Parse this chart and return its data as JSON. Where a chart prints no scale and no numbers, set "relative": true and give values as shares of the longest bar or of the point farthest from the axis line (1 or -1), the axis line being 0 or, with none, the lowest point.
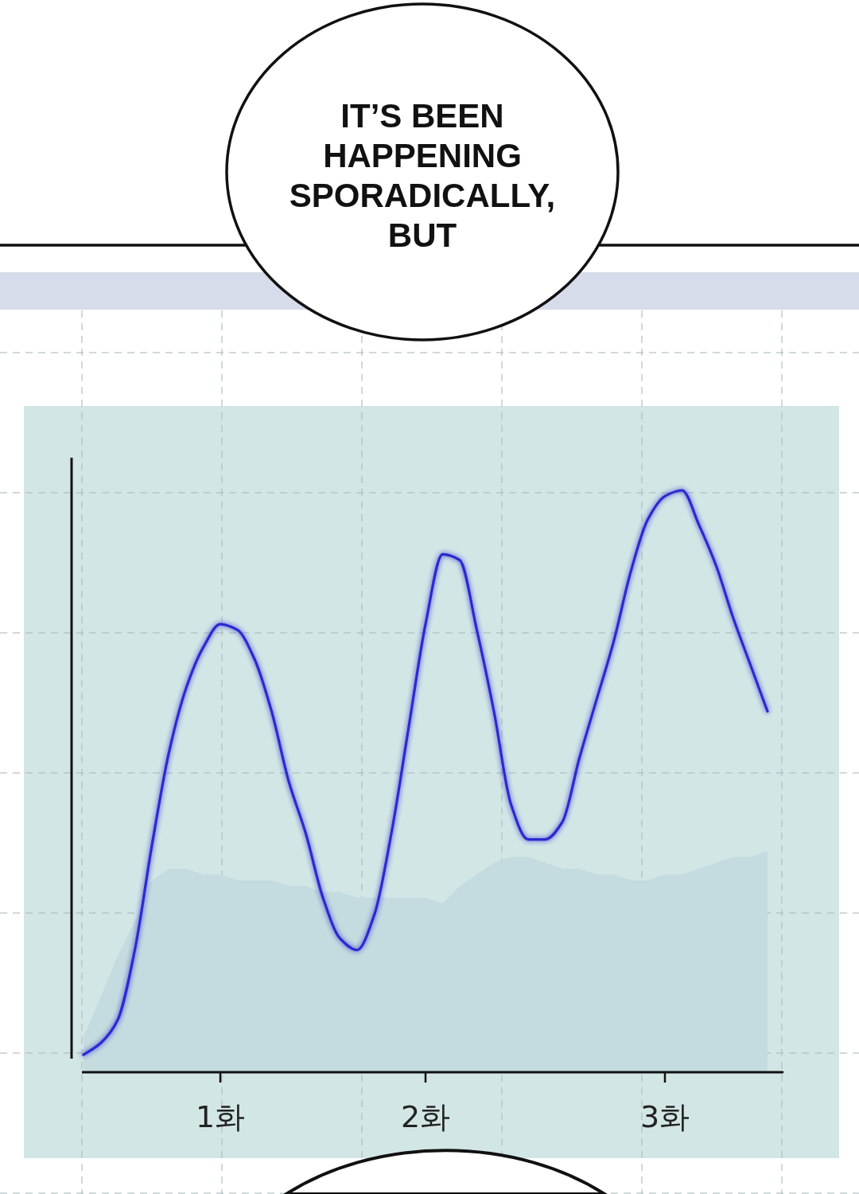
{
  "chart_data": {
    "type": "line",
    "relative": true,
    "tick_labels": "x",
    "grid": true,
    "annotations": [
      "IT’S BEEN HAPPENING SPORADICALLY, BUT"
    ],
    "categories": [
      null,
      null,
      null,
      null,
      null,
      null,
      null,
      null,
      "1화",
      null,
      null,
      null,
      null,
      null,
      null,
      null,
      null,
      null,
      null,
      null,
      "2화",
      null,
      null,
      null,
      null,
      null,
      null,
      null,
      null,
      null,
      null,
      null,
      null,
      null,
      "3화",
      null,
      null,
      null,
      null,
      null,
      null,
      null
    ],
    "series": [
      {
        "type": "area",
        "color": "#c4dcdf",
        "values": [
          0.06,
          0.13,
          0.2,
          0.26,
          0.33,
          0.35,
          0.35,
          0.34,
          0.34,
          0.33,
          0.33,
          0.33,
          0.32,
          0.32,
          0.31,
          0.31,
          0.3,
          0.3,
          0.3,
          0.3,
          0.3,
          0.29,
          0.32,
          0.34,
          0.36,
          0.37,
          0.37,
          0.36,
          0.35,
          0.35,
          0.34,
          0.34,
          0.33,
          0.33,
          0.34,
          0.34,
          0.35,
          0.36,
          0.37,
          0.37,
          0.38,
          null
        ]
      },
      {
        "color": "#2b2bd1",
        "values": [
          0.03,
          0.05,
          0.09,
          0.21,
          0.39,
          0.55,
          0.66,
          0.73,
          0.77,
          0.76,
          0.71,
          0.62,
          0.5,
          0.41,
          0.3,
          0.23,
          0.21,
          0.27,
          0.41,
          0.59,
          0.77,
          0.89,
          0.88,
          0.76,
          0.62,
          0.46,
          0.4,
          0.4,
          0.43,
          0.54,
          0.64,
          0.74,
          0.86,
          0.95,
          0.99,
          1,
          0.94,
          0.87,
          0.78,
          0.7,
          0.62,
          null
        ]
      }
    ]
  }
}
